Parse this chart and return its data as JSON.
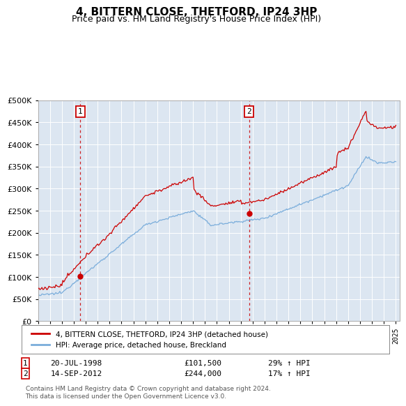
{
  "title": "4, BITTERN CLOSE, THETFORD, IP24 3HP",
  "subtitle": "Price paid vs. HM Land Registry's House Price Index (HPI)",
  "bg_color": "#dce6f1",
  "red_line_color": "#cc0000",
  "blue_line_color": "#7aaddb",
  "ylim": [
    0,
    500000
  ],
  "sale1_x": 1998.54,
  "sale1_price": 101500,
  "sale2_x": 2012.71,
  "sale2_price": 244000,
  "legend_red": "4, BITTERN CLOSE, THETFORD, IP24 3HP (detached house)",
  "legend_blue": "HPI: Average price, detached house, Breckland",
  "note1_label": "1",
  "note1_date": "20-JUL-1998",
  "note1_price": "£101,500",
  "note1_hpi": "29% ↑ HPI",
  "note2_label": "2",
  "note2_date": "14-SEP-2012",
  "note2_price": "£244,000",
  "note2_hpi": "17% ↑ HPI",
  "footer": "Contains HM Land Registry data © Crown copyright and database right 2024.\nThis data is licensed under the Open Government Licence v3.0."
}
